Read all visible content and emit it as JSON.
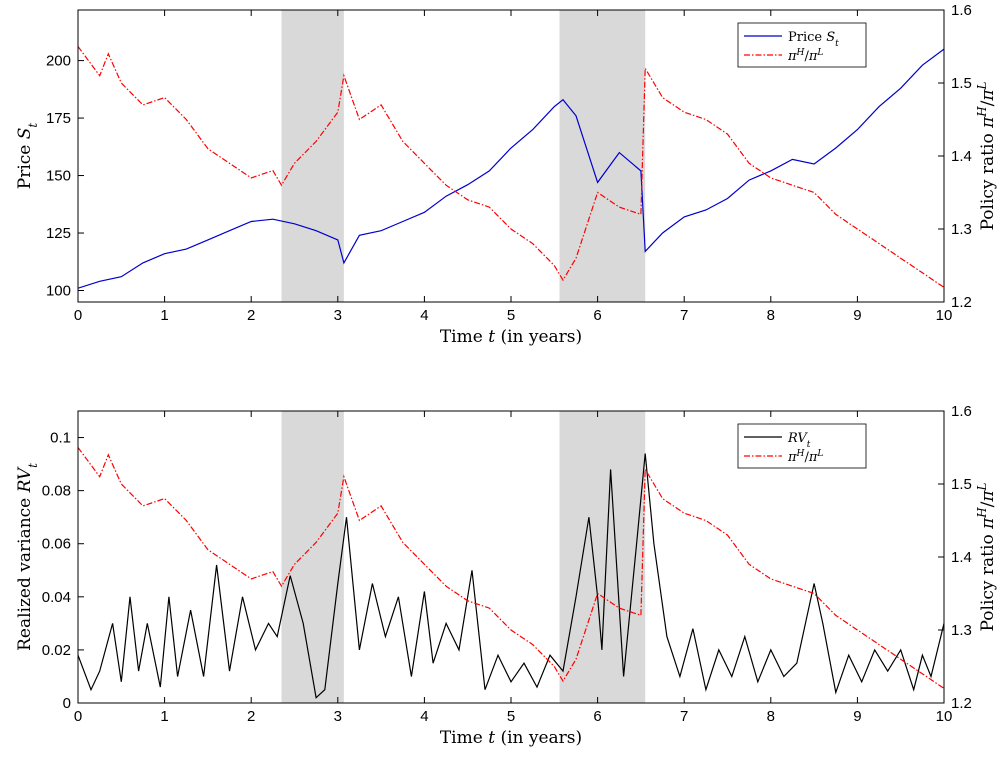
{
  "chart_data": [
    {
      "type": "line",
      "xlabel": "Time t (in years)",
      "ylabel_left": "Price S_t",
      "ylabel_right": "Policy ratio π^H/π^L",
      "xlim": [
        0,
        10
      ],
      "ylim_left": [
        95,
        222
      ],
      "ylim_right": [
        1.2,
        1.6
      ],
      "xticks": [
        "0",
        "1",
        "2",
        "3",
        "4",
        "5",
        "6",
        "7",
        "8",
        "9",
        "10"
      ],
      "yticks_left": [
        "100",
        "125",
        "150",
        "175",
        "200"
      ],
      "yticks_right": [
        "1.2",
        "1.3",
        "1.4",
        "1.5",
        "1.6"
      ],
      "shaded_regions": [
        [
          2.35,
          3.07
        ],
        [
          5.56,
          6.55
        ]
      ],
      "grid": false,
      "legend_position": "top-right",
      "series": [
        {
          "name": "Price S_t",
          "axis": "left",
          "color": "#0000cc",
          "style": "solid",
          "x": [
            0,
            0.25,
            0.5,
            0.75,
            1,
            1.25,
            1.5,
            1.75,
            2,
            2.25,
            2.5,
            2.75,
            3,
            3.07,
            3.25,
            3.5,
            3.75,
            4,
            4.25,
            4.5,
            4.75,
            5,
            5.25,
            5.5,
            5.6,
            5.75,
            6,
            6.25,
            6.5,
            6.55,
            6.75,
            7,
            7.25,
            7.5,
            7.75,
            8,
            8.25,
            8.5,
            8.75,
            9,
            9.25,
            9.5,
            9.75,
            10
          ],
          "y": [
            101,
            104,
            106,
            112,
            116,
            118,
            122,
            126,
            130,
            131,
            129,
            126,
            122,
            112,
            124,
            126,
            130,
            134,
            141,
            146,
            152,
            162,
            170,
            180,
            183,
            176,
            147,
            160,
            152,
            117,
            125,
            132,
            135,
            140,
            148,
            152,
            157,
            155,
            162,
            170,
            180,
            188,
            198,
            205
          ]
        },
        {
          "name": "π^H/π^L",
          "axis": "right",
          "color": "#ff0000",
          "style": "dash-dot",
          "x": [
            0,
            0.25,
            0.35,
            0.5,
            0.75,
            1,
            1.25,
            1.5,
            1.75,
            2,
            2.25,
            2.35,
            2.5,
            2.75,
            3,
            3.07,
            3.25,
            3.5,
            3.75,
            4,
            4.25,
            4.5,
            4.75,
            5,
            5.25,
            5.5,
            5.6,
            5.75,
            6,
            6.25,
            6.5,
            6.55,
            6.75,
            7,
            7.25,
            7.5,
            7.75,
            8,
            8.25,
            8.5,
            8.75,
            9,
            9.25,
            9.5,
            9.75,
            10
          ],
          "y": [
            1.55,
            1.51,
            1.54,
            1.5,
            1.47,
            1.48,
            1.45,
            1.41,
            1.39,
            1.37,
            1.38,
            1.36,
            1.39,
            1.42,
            1.46,
            1.51,
            1.45,
            1.47,
            1.42,
            1.39,
            1.36,
            1.34,
            1.33,
            1.3,
            1.28,
            1.25,
            1.23,
            1.26,
            1.35,
            1.33,
            1.32,
            1.52,
            1.48,
            1.46,
            1.45,
            1.43,
            1.39,
            1.37,
            1.36,
            1.35,
            1.32,
            1.3,
            1.28,
            1.26,
            1.24,
            1.22
          ]
        }
      ]
    },
    {
      "type": "line",
      "xlabel": "Time t (in years)",
      "ylabel_left": "Realized variance RV_t",
      "ylabel_right": "Policy ratio π^H/π^L",
      "xlim": [
        0,
        10
      ],
      "ylim_left": [
        0,
        0.11
      ],
      "ylim_right": [
        1.2,
        1.6
      ],
      "xticks": [
        "0",
        "1",
        "2",
        "3",
        "4",
        "5",
        "6",
        "7",
        "8",
        "9",
        "10"
      ],
      "yticks_left": [
        "0",
        "0.02",
        "0.04",
        "0.06",
        "0.08",
        "0.1"
      ],
      "yticks_right": [
        "1.2",
        "1.3",
        "1.4",
        "1.5",
        "1.6"
      ],
      "shaded_regions": [
        [
          2.35,
          3.07
        ],
        [
          5.56,
          6.55
        ]
      ],
      "grid": false,
      "legend_position": "top-right",
      "series": [
        {
          "name": "RV_t",
          "axis": "left",
          "color": "#000000",
          "style": "solid",
          "x": [
            0,
            0.15,
            0.25,
            0.4,
            0.5,
            0.6,
            0.7,
            0.8,
            0.95,
            1.05,
            1.15,
            1.3,
            1.45,
            1.6,
            1.75,
            1.9,
            2.05,
            2.2,
            2.3,
            2.45,
            2.6,
            2.75,
            2.85,
            3.0,
            3.1,
            3.25,
            3.4,
            3.55,
            3.7,
            3.85,
            4.0,
            4.1,
            4.25,
            4.4,
            4.55,
            4.7,
            4.85,
            5.0,
            5.15,
            5.3,
            5.45,
            5.6,
            5.75,
            5.9,
            6.0,
            6.05,
            6.15,
            6.3,
            6.45,
            6.55,
            6.65,
            6.8,
            6.95,
            7.1,
            7.25,
            7.4,
            7.55,
            7.7,
            7.85,
            8.0,
            8.15,
            8.3,
            8.5,
            8.6,
            8.75,
            8.9,
            9.05,
            9.2,
            9.35,
            9.5,
            9.65,
            9.75,
            9.85,
            10
          ],
          "y": [
            0.018,
            0.005,
            0.012,
            0.03,
            0.008,
            0.04,
            0.012,
            0.03,
            0.006,
            0.04,
            0.01,
            0.035,
            0.01,
            0.052,
            0.012,
            0.04,
            0.02,
            0.03,
            0.025,
            0.048,
            0.03,
            0.002,
            0.005,
            0.045,
            0.07,
            0.02,
            0.045,
            0.025,
            0.04,
            0.01,
            0.042,
            0.015,
            0.03,
            0.02,
            0.05,
            0.005,
            0.018,
            0.008,
            0.015,
            0.006,
            0.018,
            0.012,
            0.04,
            0.07,
            0.04,
            0.02,
            0.088,
            0.01,
            0.06,
            0.094,
            0.06,
            0.025,
            0.01,
            0.028,
            0.005,
            0.02,
            0.01,
            0.025,
            0.008,
            0.02,
            0.01,
            0.015,
            0.045,
            0.03,
            0.004,
            0.018,
            0.008,
            0.02,
            0.012,
            0.02,
            0.005,
            0.018,
            0.01,
            0.03
          ]
        },
        {
          "name": "π^H/π^L",
          "axis": "right",
          "color": "#ff0000",
          "style": "dash-dot",
          "x": [
            0,
            0.25,
            0.35,
            0.5,
            0.75,
            1,
            1.25,
            1.5,
            1.75,
            2,
            2.25,
            2.35,
            2.5,
            2.75,
            3,
            3.07,
            3.25,
            3.5,
            3.75,
            4,
            4.25,
            4.5,
            4.75,
            5,
            5.25,
            5.5,
            5.6,
            5.75,
            6,
            6.25,
            6.5,
            6.55,
            6.75,
            7,
            7.25,
            7.5,
            7.75,
            8,
            8.25,
            8.5,
            8.75,
            9,
            9.25,
            9.5,
            9.75,
            10
          ],
          "y": [
            1.55,
            1.51,
            1.54,
            1.5,
            1.47,
            1.48,
            1.45,
            1.41,
            1.39,
            1.37,
            1.38,
            1.36,
            1.39,
            1.42,
            1.46,
            1.51,
            1.45,
            1.47,
            1.42,
            1.39,
            1.36,
            1.34,
            1.33,
            1.3,
            1.28,
            1.25,
            1.23,
            1.26,
            1.35,
            1.33,
            1.32,
            1.52,
            1.48,
            1.46,
            1.45,
            1.43,
            1.39,
            1.37,
            1.36,
            1.35,
            1.32,
            1.3,
            1.28,
            1.26,
            1.24,
            1.22
          ]
        }
      ]
    }
  ]
}
